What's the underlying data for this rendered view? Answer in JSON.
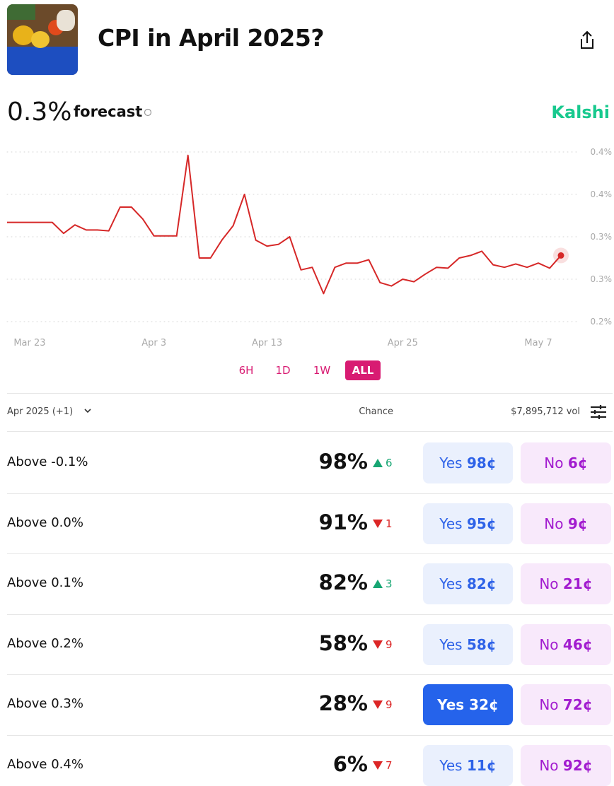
{
  "header": {
    "title": "CPI in April 2025?"
  },
  "forecast": {
    "value": "0.3%",
    "label": "forecast",
    "brand": "Kalshi"
  },
  "chart_data": {
    "type": "line",
    "color": "#d62828",
    "grid": true,
    "x": [
      "Mar 21",
      "Mar 22",
      "Mar 23",
      "Mar 24",
      "Mar 25",
      "Mar 26",
      "Mar 27",
      "Mar 28",
      "Mar 29",
      "Mar 30",
      "Mar 31",
      "Apr 1",
      "Apr 2",
      "Apr 3",
      "Apr 4",
      "Apr 5",
      "Apr 6",
      "Apr 7",
      "Apr 8",
      "Apr 9",
      "Apr 10",
      "Apr 11",
      "Apr 12",
      "Apr 13",
      "Apr 14",
      "Apr 15",
      "Apr 16",
      "Apr 17",
      "Apr 18",
      "Apr 19",
      "Apr 20",
      "Apr 21",
      "Apr 22",
      "Apr 23",
      "Apr 24",
      "Apr 25",
      "Apr 26",
      "Apr 27",
      "Apr 28",
      "Apr 29",
      "Apr 30",
      "May 1",
      "May 2",
      "May 3",
      "May 4",
      "May 5",
      "May 6",
      "May 7",
      "May 8",
      "May 9"
    ],
    "values": [
      0.317,
      0.317,
      0.317,
      0.317,
      0.317,
      0.304,
      0.314,
      0.308,
      0.308,
      0.307,
      0.335,
      0.335,
      0.321,
      0.301,
      0.301,
      0.301,
      0.396,
      0.275,
      0.275,
      0.296,
      0.313,
      0.35,
      0.296,
      0.289,
      0.291,
      0.3,
      0.261,
      0.264,
      0.233,
      0.264,
      0.269,
      0.269,
      0.273,
      0.246,
      0.242,
      0.25,
      0.247,
      0.256,
      0.264,
      0.263,
      0.275,
      0.278,
      0.283,
      0.267,
      0.264,
      0.268,
      0.264,
      0.269,
      0.263,
      0.278
    ],
    "xticks": [
      "Mar 23",
      "Apr 3",
      "Apr 13",
      "Apr 25",
      "May 7"
    ],
    "ylim": [
      0.2,
      0.4
    ],
    "yticks": [
      {
        "value": 0.4,
        "label": "0.4%"
      },
      {
        "value": 0.35,
        "label": "0.4%"
      },
      {
        "value": 0.3,
        "label": "0.3%"
      },
      {
        "value": 0.25,
        "label": "0.3%"
      },
      {
        "value": 0.2,
        "label": "0.2%"
      }
    ]
  },
  "range_buttons": {
    "options": [
      "6H",
      "1D",
      "1W",
      "ALL"
    ],
    "active": 3
  },
  "table": {
    "header": {
      "group": "Apr 2025 (+1)",
      "chance": "Chance",
      "volume": "$7,895,712 vol"
    },
    "rows": [
      {
        "label": "Above -0.1%",
        "chance": "98%",
        "change": "6",
        "direction": "up",
        "yes": "Yes",
        "yes_price": "98¢",
        "no": "No",
        "no_price": "6¢",
        "selected": false
      },
      {
        "label": "Above 0.0%",
        "chance": "91%",
        "change": "1",
        "direction": "down",
        "yes": "Yes",
        "yes_price": "95¢",
        "no": "No",
        "no_price": "9¢",
        "selected": false
      },
      {
        "label": "Above 0.1%",
        "chance": "82%",
        "change": "3",
        "direction": "up",
        "yes": "Yes",
        "yes_price": "82¢",
        "no": "No",
        "no_price": "21¢",
        "selected": false
      },
      {
        "label": "Above 0.2%",
        "chance": "58%",
        "change": "9",
        "direction": "down",
        "yes": "Yes",
        "yes_price": "58¢",
        "no": "No",
        "no_price": "46¢",
        "selected": false
      },
      {
        "label": "Above 0.3%",
        "chance": "28%",
        "change": "9",
        "direction": "down",
        "yes": "Yes",
        "yes_price": "32¢",
        "no": "No",
        "no_price": "72¢",
        "selected": true
      },
      {
        "label": "Above 0.4%",
        "chance": "6%",
        "change": "7",
        "direction": "down",
        "yes": "Yes",
        "yes_price": "11¢",
        "no": "No",
        "no_price": "92¢",
        "selected": false
      }
    ]
  }
}
